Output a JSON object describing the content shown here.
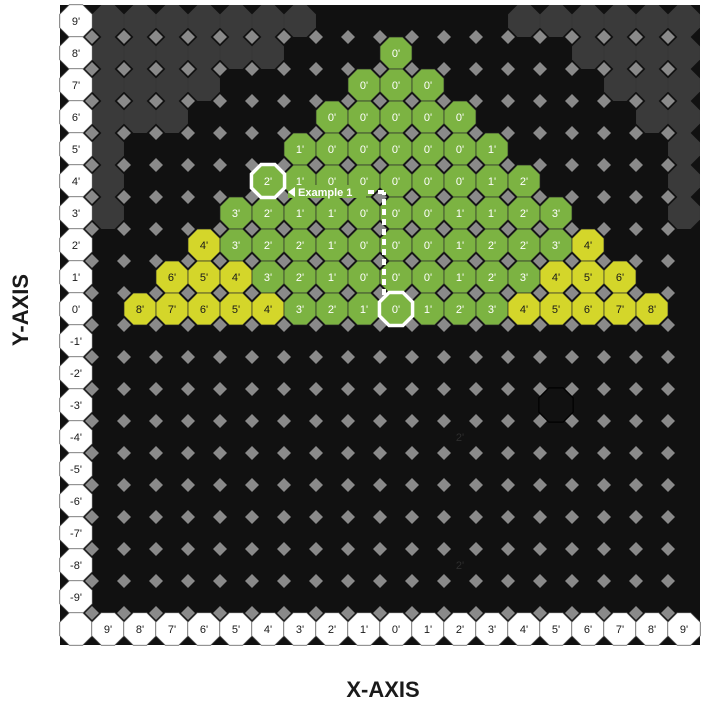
{
  "axes": {
    "x_title": "X-AXIS",
    "y_title": "Y-AXIS",
    "x_labels": [
      "9'",
      "8'",
      "7'",
      "6'",
      "5'",
      "4'",
      "3'",
      "2'",
      "1'",
      "0'",
      "1'",
      "2'",
      "3'",
      "4'",
      "5'",
      "6'",
      "7'",
      "8'",
      "9'"
    ],
    "y_labels": [
      "9'",
      "8'",
      "7'",
      "6'",
      "5'",
      "4'",
      "3'",
      "2'",
      "1'",
      "0'",
      "-1'",
      "-2'",
      "-3'",
      "-4'",
      "-5'",
      "-6'",
      "-7'",
      "-8'",
      "-9'"
    ]
  },
  "colors": {
    "background": "#111111",
    "dark_region": "#3a3a3a",
    "diamond": "#8a8a8a",
    "green": "#7cb342",
    "yellow": "#d4d62a",
    "header": "#ffffff"
  },
  "grid": {
    "rows": [
      {
        "y": "8'",
        "cells": [
          {
            "x": 0,
            "label": "0'",
            "color": "green"
          }
        ]
      },
      {
        "y": "7'",
        "cells": [
          {
            "x": -1,
            "label": "0'",
            "color": "green"
          },
          {
            "x": 0,
            "label": "0'",
            "color": "green"
          },
          {
            "x": 1,
            "label": "0'",
            "color": "green"
          }
        ]
      },
      {
        "y": "6'",
        "cells": [
          {
            "x": -2,
            "label": "0'",
            "color": "green"
          },
          {
            "x": -1,
            "label": "0'",
            "color": "green"
          },
          {
            "x": 0,
            "label": "0'",
            "color": "green"
          },
          {
            "x": 1,
            "label": "0'",
            "color": "green"
          },
          {
            "x": 2,
            "label": "0'",
            "color": "green"
          }
        ]
      },
      {
        "y": "5'",
        "cells": [
          {
            "x": -3,
            "label": "1'",
            "color": "green"
          },
          {
            "x": -2,
            "label": "0'",
            "color": "green"
          },
          {
            "x": -1,
            "label": "0'",
            "color": "green"
          },
          {
            "x": 0,
            "label": "0'",
            "color": "green"
          },
          {
            "x": 1,
            "label": "0'",
            "color": "green"
          },
          {
            "x": 2,
            "label": "0'",
            "color": "green"
          },
          {
            "x": 3,
            "label": "1'",
            "color": "green"
          }
        ]
      },
      {
        "y": "4'",
        "cells": [
          {
            "x": -4,
            "label": "2'",
            "color": "green"
          },
          {
            "x": -3,
            "label": "1'",
            "color": "green"
          },
          {
            "x": -2,
            "label": "0'",
            "color": "green"
          },
          {
            "x": -1,
            "label": "0'",
            "color": "green"
          },
          {
            "x": 0,
            "label": "0'",
            "color": "green"
          },
          {
            "x": 1,
            "label": "0'",
            "color": "green"
          },
          {
            "x": 2,
            "label": "0'",
            "color": "green"
          },
          {
            "x": 3,
            "label": "1'",
            "color": "green"
          },
          {
            "x": 4,
            "label": "2'",
            "color": "green"
          }
        ]
      },
      {
        "y": "3'",
        "cells": [
          {
            "x": -5,
            "label": "3'",
            "color": "green"
          },
          {
            "x": -4,
            "label": "2'",
            "color": "green"
          },
          {
            "x": -3,
            "label": "1'",
            "color": "green"
          },
          {
            "x": -2,
            "label": "1'",
            "color": "green"
          },
          {
            "x": -1,
            "label": "0'",
            "color": "green"
          },
          {
            "x": 0,
            "label": "0'",
            "color": "green"
          },
          {
            "x": 1,
            "label": "0'",
            "color": "green"
          },
          {
            "x": 2,
            "label": "1'",
            "color": "green"
          },
          {
            "x": 3,
            "label": "1'",
            "color": "green"
          },
          {
            "x": 4,
            "label": "2'",
            "color": "green"
          },
          {
            "x": 5,
            "label": "3'",
            "color": "green"
          }
        ]
      },
      {
        "y": "2'",
        "cells": [
          {
            "x": -6,
            "label": "4'",
            "color": "yellow"
          },
          {
            "x": -5,
            "label": "3'",
            "color": "green"
          },
          {
            "x": -4,
            "label": "2'",
            "color": "green"
          },
          {
            "x": -3,
            "label": "2'",
            "color": "green"
          },
          {
            "x": -2,
            "label": "1'",
            "color": "green"
          },
          {
            "x": -1,
            "label": "0'",
            "color": "green"
          },
          {
            "x": 0,
            "label": "0'",
            "color": "green"
          },
          {
            "x": 1,
            "label": "0'",
            "color": "green"
          },
          {
            "x": 2,
            "label": "1'",
            "color": "green"
          },
          {
            "x": 3,
            "label": "2'",
            "color": "green"
          },
          {
            "x": 4,
            "label": "2'",
            "color": "green"
          },
          {
            "x": 5,
            "label": "3'",
            "color": "green"
          },
          {
            "x": 6,
            "label": "4'",
            "color": "yellow"
          }
        ]
      },
      {
        "y": "1'",
        "cells": [
          {
            "x": -7,
            "label": "6'",
            "color": "yellow"
          },
          {
            "x": -6,
            "label": "5'",
            "color": "yellow"
          },
          {
            "x": -5,
            "label": "4'",
            "color": "yellow"
          },
          {
            "x": -4,
            "label": "3'",
            "color": "green"
          },
          {
            "x": -3,
            "label": "2'",
            "color": "green"
          },
          {
            "x": -2,
            "label": "1'",
            "color": "green"
          },
          {
            "x": -1,
            "label": "0'",
            "color": "green"
          },
          {
            "x": 0,
            "label": "0'",
            "color": "green"
          },
          {
            "x": 1,
            "label": "0'",
            "color": "green"
          },
          {
            "x": 2,
            "label": "1'",
            "color": "green"
          },
          {
            "x": 3,
            "label": "2'",
            "color": "green"
          },
          {
            "x": 4,
            "label": "3'",
            "color": "green"
          },
          {
            "x": 5,
            "label": "4'",
            "color": "yellow"
          },
          {
            "x": 6,
            "label": "5'",
            "color": "yellow"
          },
          {
            "x": 7,
            "label": "6'",
            "color": "yellow"
          }
        ]
      },
      {
        "y": "0'",
        "cells": [
          {
            "x": -8,
            "label": "8'",
            "color": "yellow"
          },
          {
            "x": -7,
            "label": "7'",
            "color": "yellow"
          },
          {
            "x": -6,
            "label": "6'",
            "color": "yellow"
          },
          {
            "x": -5,
            "label": "5'",
            "color": "yellow"
          },
          {
            "x": -4,
            "label": "4'",
            "color": "yellow"
          },
          {
            "x": -3,
            "label": "3'",
            "color": "green"
          },
          {
            "x": -2,
            "label": "2'",
            "color": "green"
          },
          {
            "x": -1,
            "label": "1'",
            "color": "green"
          },
          {
            "x": 0,
            "label": "0'",
            "color": "green"
          },
          {
            "x": 1,
            "label": "1'",
            "color": "green"
          },
          {
            "x": 2,
            "label": "2'",
            "color": "green"
          },
          {
            "x": 3,
            "label": "3'",
            "color": "green"
          },
          {
            "x": 4,
            "label": "4'",
            "color": "yellow"
          },
          {
            "x": 5,
            "label": "5'",
            "color": "yellow"
          },
          {
            "x": 6,
            "label": "6'",
            "color": "yellow"
          },
          {
            "x": 7,
            "label": "7'",
            "color": "yellow"
          },
          {
            "x": 8,
            "label": "8'",
            "color": "yellow"
          }
        ]
      }
    ]
  },
  "annotations": {
    "example_label": "Example 1",
    "highlight_start": {
      "x": 0,
      "y": "0'"
    },
    "highlight_end": {
      "x": -4,
      "y": "4'"
    },
    "faint_labels": [
      {
        "text": "2'",
        "x": 2,
        "y": "-4'"
      },
      {
        "text": "2'",
        "x": 2,
        "y": "-8'"
      }
    ],
    "outlined_empty_cell": {
      "x": 5,
      "y": "-3'"
    }
  }
}
